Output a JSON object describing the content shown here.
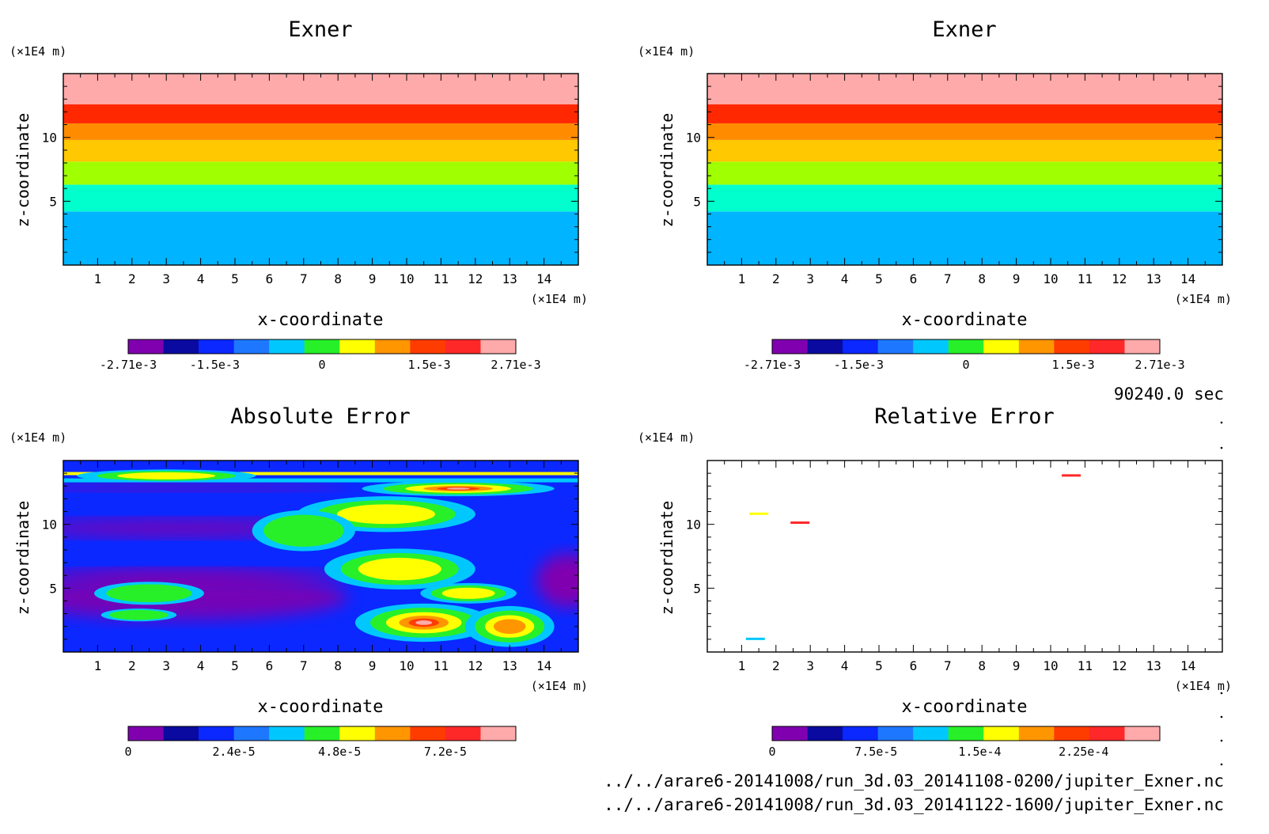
{
  "figure": {
    "time_label": "90240.0 sec",
    "file_1": "../../arare6-20141008/run_3d.03_20141108-0200/jupiter_Exner.nc",
    "file_2": "../../arare6-20141008/run_3d.03_20141122-1600/jupiter_Exner.nc"
  },
  "palette": [
    "#8000b0",
    "#0a0aa0",
    "#0a28ff",
    "#1e78ff",
    "#00c8ff",
    "#28f028",
    "#ffff00",
    "#ff9600",
    "#ff3c00",
    "#ff2828",
    "#ffaaaa"
  ],
  "band_palette": [
    "#00b4ff",
    "#00ffcc",
    "#a0ff00",
    "#ffc800",
    "#ff8c00",
    "#ff2800",
    "#ffaaaa"
  ],
  "chart_data": [
    {
      "type": "contour",
      "title": "Exner",
      "xlabel": "x-coordinate",
      "ylabel": "z-coordinate",
      "x_unit": "(×1E4 m)",
      "y_unit": "(×1E4 m)",
      "xlim": [
        0,
        15
      ],
      "ylim": [
        0,
        15
      ],
      "x_ticks": [
        1,
        2,
        3,
        4,
        5,
        6,
        7,
        8,
        9,
        10,
        11,
        12,
        13,
        14
      ],
      "y_ticks": [
        5,
        10
      ],
      "bands_z": [
        0,
        4.2,
        6.3,
        8.1,
        9.8,
        11.1,
        12.6,
        15
      ],
      "colorbar_labels": [
        "-2.71e-3",
        "-1.5e-3",
        "0",
        "1.5e-3",
        "2.71e-3"
      ],
      "colorbar_range": [
        -0.00271,
        0.00271
      ]
    },
    {
      "type": "contour",
      "title": "Exner",
      "xlabel": "x-coordinate",
      "ylabel": "z-coordinate",
      "x_unit": "(×1E4 m)",
      "y_unit": "(×1E4 m)",
      "xlim": [
        0,
        15
      ],
      "ylim": [
        0,
        15
      ],
      "x_ticks": [
        1,
        2,
        3,
        4,
        5,
        6,
        7,
        8,
        9,
        10,
        11,
        12,
        13,
        14
      ],
      "y_ticks": [
        5,
        10
      ],
      "bands_z": [
        0,
        4.2,
        6.3,
        8.1,
        9.8,
        11.1,
        12.6,
        15
      ],
      "colorbar_labels": [
        "-2.71e-3",
        "-1.5e-3",
        "0",
        "1.5e-3",
        "2.71e-3"
      ],
      "colorbar_range": [
        -0.00271,
        0.00271
      ]
    },
    {
      "type": "contour",
      "title": "Absolute Error",
      "xlabel": "x-coordinate",
      "ylabel": "z-coordinate",
      "x_unit": "(×1E4 m)",
      "y_unit": "(×1E4 m)",
      "xlim": [
        0,
        15
      ],
      "ylim": [
        0,
        15
      ],
      "x_ticks": [
        1,
        2,
        3,
        4,
        5,
        6,
        7,
        8,
        9,
        10,
        11,
        12,
        13,
        14
      ],
      "y_ticks": [
        5,
        10
      ],
      "colorbar_labels": [
        "0",
        "2.4e-5",
        "4.8e-5",
        "7.2e-5"
      ],
      "colorbar_range": [
        0,
        8.8e-05
      ],
      "blobs": [
        {
          "x": 9.4,
          "z": 10.8,
          "rx": 2.6,
          "rz": 1.4,
          "level": 5
        },
        {
          "x": 9.8,
          "z": 6.5,
          "rx": 2.2,
          "rz": 1.6,
          "level": 5
        },
        {
          "x": 10.5,
          "z": 2.3,
          "rx": 2.0,
          "rz": 1.5,
          "level": 7
        },
        {
          "x": 13.0,
          "z": 2.0,
          "rx": 1.3,
          "rz": 1.6,
          "level": 6
        },
        {
          "x": 11.8,
          "z": 4.6,
          "rx": 1.4,
          "rz": 0.8,
          "level": 5
        },
        {
          "x": 11.5,
          "z": 12.8,
          "rx": 2.8,
          "rz": 0.6,
          "level": 7
        },
        {
          "x": 3.0,
          "z": 13.8,
          "rx": 2.6,
          "rz": 0.5,
          "level": 5
        },
        {
          "x": 2.5,
          "z": 4.6,
          "rx": 1.6,
          "rz": 0.9,
          "level": 4
        },
        {
          "x": 2.2,
          "z": 2.9,
          "rx": 1.1,
          "rz": 0.5,
          "level": 4
        },
        {
          "x": 7.0,
          "z": 9.5,
          "rx": 1.5,
          "rz": 1.6,
          "level": 4
        }
      ]
    },
    {
      "type": "contour",
      "title": "Relative Error",
      "xlabel": "x-coordinate",
      "ylabel": "z-coordinate",
      "x_unit": "(×1E4 m)",
      "y_unit": "(×1E4 m)",
      "xlim": [
        0,
        15
      ],
      "ylim": [
        0,
        15
      ],
      "x_ticks": [
        1,
        2,
        3,
        4,
        5,
        6,
        7,
        8,
        9,
        10,
        11,
        12,
        13,
        14
      ],
      "y_ticks": [
        5,
        10
      ],
      "colorbar_labels": [
        "0",
        "7.5e-5",
        "1.5e-4",
        "2.25e-4"
      ],
      "colorbar_range": [
        0,
        0.00028
      ],
      "specks": [
        {
          "x": 2.7,
          "z": 10.1,
          "level": 9
        },
        {
          "x": 1.5,
          "z": 10.8,
          "level": 6
        },
        {
          "x": 10.6,
          "z": 13.8,
          "level": 9
        },
        {
          "x": 1.4,
          "z": 1.0,
          "level": 4
        }
      ]
    }
  ]
}
